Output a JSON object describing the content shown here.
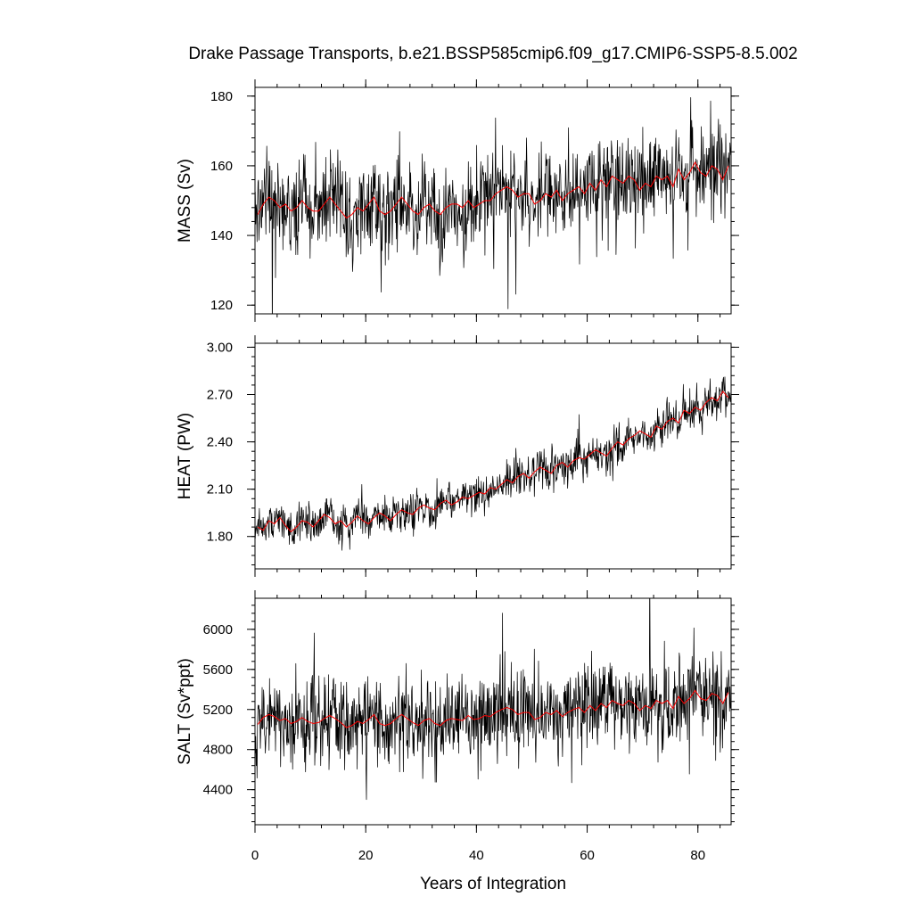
{
  "chart_data": {
    "type": "line",
    "title": "Drake Passage Transports, b.e21.BSSP585cmip6.f09_g17.CMIP6-SSP5-8.5.002",
    "xlabel": "Years of Integration",
    "xlim": [
      0,
      86
    ],
    "xticks": [
      0,
      20,
      40,
      60,
      80
    ],
    "xtick_labels": [
      "0",
      "20",
      "40",
      "60",
      "80"
    ],
    "grid": false,
    "colors": {
      "monthly": "#000000",
      "annual": "#ff0000"
    },
    "panels": [
      {
        "ylabel": "MASS (Sv)",
        "ylim": [
          117.5,
          182.5
        ],
        "yticks": [
          120,
          140,
          160,
          180
        ],
        "ytick_labels": [
          "120",
          "140",
          "160",
          "180"
        ],
        "series": [
          {
            "x": [
              0.5,
              1.5,
              2.5,
              3.5,
              4.5,
              5.5,
              6.5,
              7.5,
              8.5,
              9.5,
              10.5,
              11.5,
              12.5,
              13.5,
              14.5,
              15.5,
              16.5,
              17.5,
              18.5,
              19.5,
              20.5,
              21.5,
              22.5,
              23.5,
              24.5,
              25.5,
              26.5,
              27.5,
              28.5,
              29.5,
              30.5,
              31.5,
              32.5,
              33.5,
              34.5,
              35.5,
              36.5,
              37.5,
              38.5,
              39.5,
              40.5,
              41.5,
              42.5,
              43.5,
              44.5,
              45.5,
              46.5,
              47.5,
              48.5,
              49.5,
              50.5,
              51.5,
              52.5,
              53.5,
              54.5,
              55.5,
              56.5,
              57.5,
              58.5,
              59.5,
              60.5,
              61.5,
              62.5,
              63.5,
              64.5,
              65.5,
              66.5,
              67.5,
              68.5,
              69.5,
              70.5,
              71.5,
              72.5,
              73.5,
              74.5,
              75.5,
              76.5,
              77.5,
              78.5,
              79.5,
              80.5,
              81.5,
              82.5,
              83.5,
              84.5,
              85.5
            ],
            "y": [
              146,
              149,
              151,
              150,
              148,
              149,
              147,
              148,
              150,
              148,
              147,
              147,
              149,
              151,
              149,
              147,
              145,
              146,
              148,
              147,
              149,
              151,
              147,
              146,
              147,
              149,
              151,
              149,
              147,
              146,
              148,
              149,
              147,
              146,
              148,
              149,
              149,
              148,
              150,
              148,
              149,
              150,
              150,
              152,
              153,
              154,
              153,
              151,
              152,
              152,
              149,
              150,
              152,
              151,
              153,
              150,
              152,
              153,
              154,
              152,
              155,
              153,
              156,
              154,
              157,
              156,
              155,
              157,
              156,
              153,
              155,
              154,
              157,
              156,
              157,
              154,
              159,
              156,
              158,
              161,
              158,
              157,
              160,
              159,
              156,
              160
            ]
          }
        ]
      },
      {
        "ylabel": "HEAT (PW)",
        "ylim": [
          1.595,
          3.025
        ],
        "yticks": [
          1.8,
          2.1,
          2.4,
          2.7,
          3.0
        ],
        "ytick_labels": [
          "1.80",
          "2.10",
          "2.40",
          "2.70",
          "3.00"
        ],
        "series": [
          {
            "x": [
              0.5,
              1.5,
              2.5,
              3.5,
              4.5,
              5.5,
              6.5,
              7.5,
              8.5,
              9.5,
              10.5,
              11.5,
              12.5,
              13.5,
              14.5,
              15.5,
              16.5,
              17.5,
              18.5,
              19.5,
              20.5,
              21.5,
              22.5,
              23.5,
              24.5,
              25.5,
              26.5,
              27.5,
              28.5,
              29.5,
              30.5,
              31.5,
              32.5,
              33.5,
              34.5,
              35.5,
              36.5,
              37.5,
              38.5,
              39.5,
              40.5,
              41.5,
              42.5,
              43.5,
              44.5,
              45.5,
              46.5,
              47.5,
              48.5,
              49.5,
              50.5,
              51.5,
              52.5,
              53.5,
              54.5,
              55.5,
              56.5,
              57.5,
              58.5,
              59.5,
              60.5,
              61.5,
              62.5,
              63.5,
              64.5,
              65.5,
              66.5,
              67.5,
              68.5,
              69.5,
              70.5,
              71.5,
              72.5,
              73.5,
              74.5,
              75.5,
              76.5,
              77.5,
              78.5,
              79.5,
              80.5,
              81.5,
              82.5,
              83.5,
              84.5,
              85.5
            ],
            "y": [
              1.86,
              1.84,
              1.9,
              1.88,
              1.92,
              1.87,
              1.83,
              1.86,
              1.9,
              1.89,
              1.86,
              1.9,
              1.94,
              1.92,
              1.88,
              1.9,
              1.86,
              1.89,
              1.93,
              1.9,
              1.88,
              1.92,
              1.95,
              1.93,
              1.9,
              1.94,
              1.97,
              1.95,
              1.94,
              1.98,
              2.0,
              1.98,
              1.97,
              2.01,
              2.03,
              2.0,
              2.02,
              2.05,
              2.04,
              2.06,
              2.08,
              2.07,
              2.11,
              2.1,
              2.13,
              2.16,
              2.14,
              2.18,
              2.2,
              2.17,
              2.21,
              2.24,
              2.22,
              2.2,
              2.25,
              2.27,
              2.24,
              2.28,
              2.3,
              2.29,
              2.32,
              2.35,
              2.33,
              2.31,
              2.36,
              2.4,
              2.38,
              2.42,
              2.44,
              2.47,
              2.45,
              2.43,
              2.5,
              2.48,
              2.53,
              2.55,
              2.52,
              2.6,
              2.58,
              2.62,
              2.6,
              2.65,
              2.68,
              2.66,
              2.72,
              2.68
            ]
          }
        ]
      },
      {
        "ylabel": "SALT (Sv*ppt)",
        "ylim": [
          4050,
          6310
        ],
        "yticks": [
          4400,
          4800,
          5200,
          5600,
          6000
        ],
        "ytick_labels": [
          "4400",
          "4800",
          "5200",
          "5600",
          "6000"
        ],
        "series": [
          {
            "x": [
              0.5,
              1.5,
              2.5,
              3.5,
              4.5,
              5.5,
              6.5,
              7.5,
              8.5,
              9.5,
              10.5,
              11.5,
              12.5,
              13.5,
              14.5,
              15.5,
              16.5,
              17.5,
              18.5,
              19.5,
              20.5,
              21.5,
              22.5,
              23.5,
              24.5,
              25.5,
              26.5,
              27.5,
              28.5,
              29.5,
              30.5,
              31.5,
              32.5,
              33.5,
              34.5,
              35.5,
              36.5,
              37.5,
              38.5,
              39.5,
              40.5,
              41.5,
              42.5,
              43.5,
              44.5,
              45.5,
              46.5,
              47.5,
              48.5,
              49.5,
              50.5,
              51.5,
              52.5,
              53.5,
              54.5,
              55.5,
              56.5,
              57.5,
              58.5,
              59.5,
              60.5,
              61.5,
              62.5,
              63.5,
              64.5,
              65.5,
              66.5,
              67.5,
              68.5,
              69.5,
              70.5,
              71.5,
              72.5,
              73.5,
              74.5,
              75.5,
              76.5,
              77.5,
              78.5,
              79.5,
              80.5,
              81.5,
              82.5,
              83.5,
              84.5,
              85.5
            ],
            "y": [
              5050,
              5120,
              5150,
              5130,
              5090,
              5110,
              5060,
              5080,
              5120,
              5080,
              5060,
              5070,
              5110,
              5140,
              5110,
              5070,
              5020,
              5040,
              5080,
              5060,
              5100,
              5150,
              5060,
              5040,
              5060,
              5110,
              5150,
              5110,
              5070,
              5040,
              5090,
              5110,
              5060,
              5040,
              5090,
              5110,
              5100,
              5090,
              5140,
              5100,
              5110,
              5140,
              5130,
              5170,
              5200,
              5220,
              5200,
              5150,
              5170,
              5170,
              5100,
              5120,
              5170,
              5150,
              5190,
              5130,
              5170,
              5200,
              5220,
              5170,
              5240,
              5190,
              5260,
              5220,
              5290,
              5260,
              5240,
              5290,
              5260,
              5190,
              5240,
              5210,
              5290,
              5260,
              5290,
              5210,
              5330,
              5260,
              5310,
              5390,
              5310,
              5290,
              5360,
              5340,
              5260,
              5370
            ]
          }
        ]
      }
    ]
  }
}
